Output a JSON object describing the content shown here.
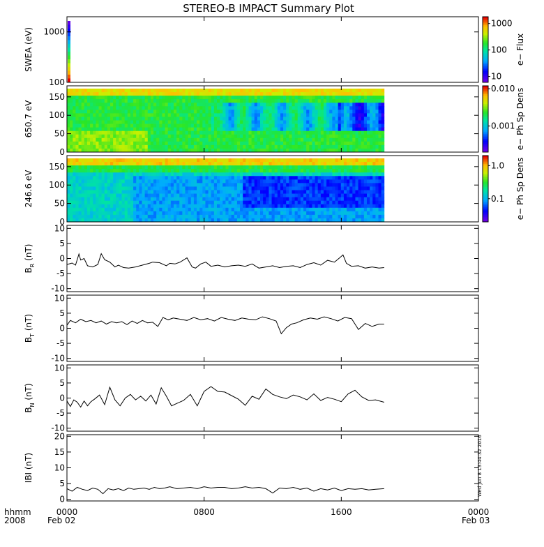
{
  "title": "STEREO-B IMPACT Summary Plot",
  "timestamp": "Wed Jun 8 13:44:32 2016",
  "footer": {
    "left_line1": "hhmm",
    "left_line2": "2008",
    "date_start": "Feb 02",
    "date_end": "Feb 03"
  },
  "chart_data": [
    {
      "type": "heatmap",
      "ylabel": "SWEA (eV)",
      "yscale": "log",
      "ylim": [
        100,
        2000
      ],
      "yticks": [
        "1000",
        "100"
      ],
      "colorbar_label": "e− Flux",
      "colorbar_ticks": [
        "1000",
        "100",
        "10"
      ],
      "colorbar_scale": "log",
      "colorbar_range": [
        6,
        1800
      ],
      "x_coverage_hours": [
        0,
        0.15
      ],
      "colormap": "rainbow"
    },
    {
      "type": "heatmap",
      "ylabel": "650.7 eV",
      "ylim": [
        0,
        180
      ],
      "yticks": [
        "150",
        "100",
        "50",
        "0"
      ],
      "colorbar_label": "e− Ph Sp Dens",
      "colorbar_ticks": [
        "0.010",
        "0.001"
      ],
      "colorbar_scale": "log",
      "colorbar_range": [
        0.0002,
        0.012
      ],
      "x_coverage_hours": [
        0,
        18.5
      ],
      "colormap": "rainbow"
    },
    {
      "type": "heatmap",
      "ylabel": "246.6 eV",
      "ylim": [
        0,
        180
      ],
      "yticks": [
        "150",
        "100",
        "50",
        "0"
      ],
      "colorbar_label": "e− Ph Sp Dens",
      "colorbar_ticks": [
        "1.0",
        "0.1"
      ],
      "colorbar_scale": "log",
      "colorbar_range": [
        0.02,
        2.0
      ],
      "x_coverage_hours": [
        0,
        18.5
      ],
      "colormap": "rainbow"
    },
    {
      "type": "line",
      "ylabel": "B_R (nT)",
      "ylabel_main": "B",
      "ylabel_sub": "R",
      "ylabel_unit": " (nT)",
      "ylim": [
        -11,
        11
      ],
      "yticks": [
        10,
        5,
        0,
        -5,
        -10
      ],
      "x": [
        0,
        0.3,
        0.5,
        0.7,
        0.8,
        1.0,
        1.2,
        1.5,
        1.8,
        2.0,
        2.2,
        2.5,
        2.8,
        3.0,
        3.3,
        3.6,
        4.0,
        4.4,
        4.8,
        5.0,
        5.4,
        5.8,
        6.0,
        6.3,
        6.6,
        7.0,
        7.3,
        7.5,
        7.8,
        8.1,
        8.4,
        8.8,
        9.2,
        9.6,
        10.0,
        10.4,
        10.8,
        11.2,
        11.6,
        12.0,
        12.4,
        12.8,
        13.2,
        13.6,
        14.0,
        14.4,
        14.8,
        15.2,
        15.6,
        15.9,
        16.1,
        16.3,
        16.6,
        17.0,
        17.4,
        17.8,
        18.2,
        18.5
      ],
      "y": [
        -2,
        -1.5,
        -2.2,
        1.5,
        -0.5,
        0,
        -2.4,
        -2.8,
        -2,
        1.6,
        -0.4,
        -1.2,
        -2.8,
        -2.2,
        -3,
        -3.2,
        -2.8,
        -2.2,
        -1.6,
        -1.2,
        -1.4,
        -2.4,
        -1.6,
        -1.8,
        -1.2,
        0.2,
        -2.8,
        -3.2,
        -1.8,
        -1.2,
        -2.6,
        -2.2,
        -2.8,
        -2.4,
        -2.2,
        -2.6,
        -1.8,
        -3.2,
        -2.8,
        -2.4,
        -3,
        -2.6,
        -2.4,
        -3,
        -2,
        -1.4,
        -2.2,
        -0.6,
        -1.2,
        0.2,
        1.2,
        -1.6,
        -2.6,
        -2.4,
        -3.2,
        -2.8,
        -3.2,
        -3
      ]
    },
    {
      "type": "line",
      "ylabel": "B_T (nT)",
      "ylabel_main": "B",
      "ylabel_sub": "T",
      "ylabel_unit": " (nT)",
      "ylim": [
        -11,
        11
      ],
      "yticks": [
        10,
        5,
        0,
        -5,
        -10
      ],
      "x": [
        0,
        0.2,
        0.5,
        0.8,
        1.1,
        1.4,
        1.7,
        2.0,
        2.3,
        2.6,
        2.9,
        3.2,
        3.5,
        3.8,
        4.1,
        4.4,
        4.7,
        5.0,
        5.3,
        5.6,
        5.9,
        6.2,
        6.6,
        7.0,
        7.4,
        7.8,
        8.2,
        8.6,
        9.0,
        9.4,
        9.8,
        10.2,
        10.6,
        11.0,
        11.4,
        11.8,
        12.2,
        12.5,
        12.8,
        13.1,
        13.4,
        13.8,
        14.2,
        14.6,
        15.0,
        15.4,
        15.8,
        16.2,
        16.6,
        17.0,
        17.4,
        17.8,
        18.2,
        18.5
      ],
      "y": [
        1,
        2.6,
        1.8,
        3,
        2.2,
        2.6,
        1.8,
        2.4,
        1.4,
        2.2,
        1.8,
        2.2,
        1.2,
        2.4,
        1.6,
        2.6,
        1.8,
        2,
        0.6,
        3.6,
        2.8,
        3.4,
        3,
        2.6,
        3.6,
        2.8,
        3.2,
        2.4,
        3.6,
        3,
        2.6,
        3.4,
        3,
        2.8,
        3.8,
        3.2,
        2.4,
        -1.8,
        0.2,
        1.4,
        1.8,
        2.8,
        3.4,
        3,
        3.8,
        3.2,
        2.4,
        3.6,
        3.2,
        -0.4,
        1.6,
        0.6,
        1.4,
        1.4
      ]
    },
    {
      "type": "line",
      "ylabel": "B_N (nT)",
      "ylabel_main": "B",
      "ylabel_sub": "N",
      "ylabel_unit": " (nT)",
      "ylim": [
        -11,
        11
      ],
      "yticks": [
        10,
        5,
        0,
        -5,
        -10
      ],
      "x": [
        0,
        0.2,
        0.4,
        0.6,
        0.8,
        1.0,
        1.2,
        1.4,
        1.6,
        1.9,
        2.2,
        2.5,
        2.8,
        3.1,
        3.4,
        3.7,
        4.0,
        4.3,
        4.6,
        4.9,
        5.2,
        5.5,
        5.8,
        6.1,
        6.4,
        6.8,
        7.2,
        7.6,
        8.0,
        8.4,
        8.8,
        9.2,
        9.6,
        10.0,
        10.4,
        10.8,
        11.2,
        11.6,
        12.0,
        12.4,
        12.8,
        13.2,
        13.6,
        14.0,
        14.4,
        14.8,
        15.2,
        15.6,
        16.0,
        16.4,
        16.8,
        17.2,
        17.6,
        18.0,
        18.5
      ],
      "y": [
        -1,
        -2.8,
        -0.6,
        -1.4,
        -3,
        -1,
        -2.6,
        -1.2,
        -0.4,
        1,
        -2.2,
        3.6,
        -0.6,
        -2.6,
        0,
        1.2,
        -0.6,
        0.6,
        -1,
        1,
        -2,
        3.4,
        0.6,
        -2.6,
        -1.8,
        -0.8,
        1.2,
        -2.6,
        2.2,
        3.8,
        2.2,
        2,
        0.8,
        -0.4,
        -2.4,
        0.6,
        -0.4,
        3,
        1.2,
        0.4,
        -0.2,
        1,
        0.4,
        -0.6,
        1.4,
        -0.8,
        0.2,
        -0.4,
        -1.2,
        1.4,
        2.6,
        0.4,
        -0.8,
        -0.6,
        -1.4
      ]
    },
    {
      "type": "line",
      "ylabel": "|B| (nT)",
      "ylabel_main": "IBI",
      "ylabel_sub": "",
      "ylabel_unit": " (nT)",
      "ylim": [
        -0.5,
        20.5
      ],
      "yticks": [
        20,
        15,
        10,
        5,
        0
      ],
      "x": [
        0,
        0.3,
        0.6,
        0.9,
        1.2,
        1.5,
        1.8,
        2.1,
        2.4,
        2.7,
        3.0,
        3.3,
        3.6,
        3.9,
        4.2,
        4.5,
        4.8,
        5.1,
        5.4,
        5.7,
        6.0,
        6.4,
        6.8,
        7.2,
        7.6,
        8.0,
        8.4,
        8.8,
        9.2,
        9.6,
        10.0,
        10.4,
        10.8,
        11.2,
        11.6,
        12.0,
        12.4,
        12.8,
        13.2,
        13.6,
        14.0,
        14.4,
        14.8,
        15.2,
        15.6,
        16.0,
        16.4,
        16.8,
        17.2,
        17.6,
        18.0,
        18.5
      ],
      "y": [
        3.4,
        2.6,
        3.8,
        3.2,
        2.8,
        3.6,
        3.2,
        1.8,
        3.4,
        3,
        3.4,
        2.8,
        3.6,
        3.2,
        3.4,
        3.6,
        3.2,
        3.8,
        3.4,
        3.6,
        4,
        3.4,
        3.6,
        3.8,
        3.4,
        4,
        3.6,
        3.8,
        3.8,
        3.4,
        3.6,
        4,
        3.6,
        3.8,
        3.4,
        2,
        3.6,
        3.4,
        3.8,
        3.2,
        3.6,
        2.6,
        3.4,
        3,
        3.6,
        2.8,
        3.4,
        3.2,
        3.4,
        3,
        3.2,
        3.4
      ]
    }
  ],
  "x_axis": {
    "range_hours": [
      0,
      24
    ],
    "tick_labels": [
      "0000",
      "0800",
      "1600",
      "0000"
    ],
    "tick_hours": [
      0,
      8,
      16,
      24
    ]
  }
}
